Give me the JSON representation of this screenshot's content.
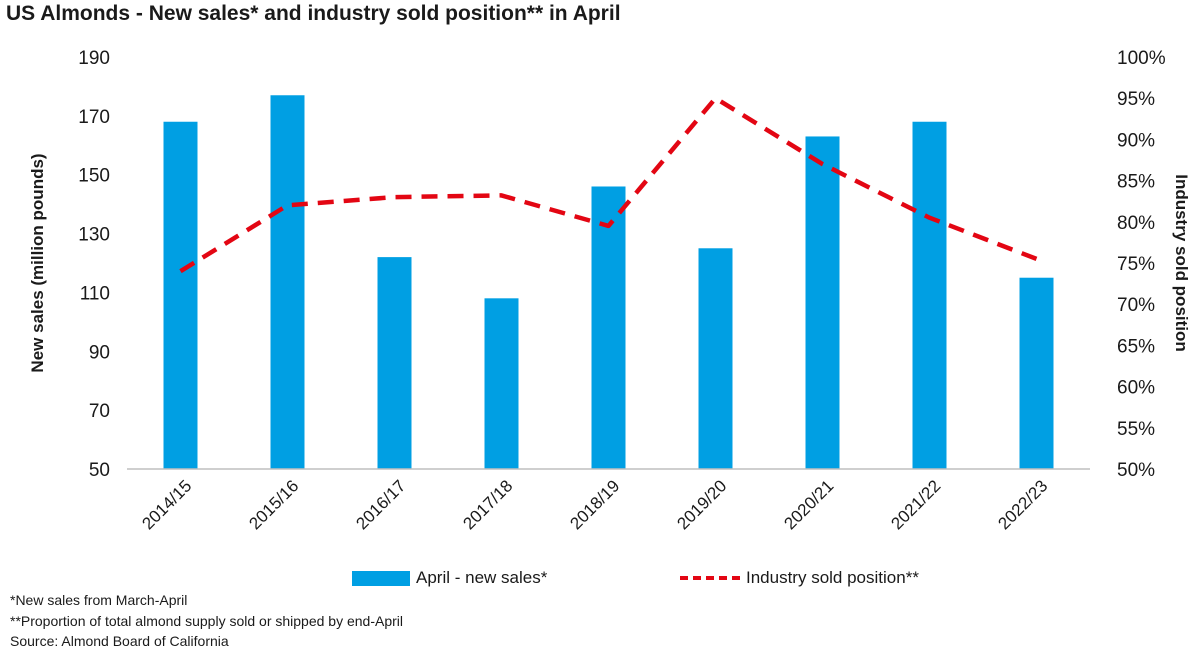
{
  "title": "US Almonds - New sales* and industry sold position** in April",
  "colors": {
    "bar": "#009fe3",
    "line": "#e30613",
    "axis": "#bfbfbf",
    "text": "#1a1a1a"
  },
  "legend": {
    "bar_label": "April - new sales*",
    "line_label": "Industry sold position**"
  },
  "footnotes": [
    "*New sales from March-April",
    "**Proportion of total almond supply sold or shipped by end-April",
    "Source: Almond Board of California"
  ],
  "chart_data": {
    "type": "bar",
    "categories": [
      "2014/15",
      "2015/16",
      "2016/17",
      "2017/18",
      "2018/19",
      "2019/20",
      "2020/21",
      "2021/22",
      "2022/23"
    ],
    "ylabel": "New sales (million pounds)",
    "y2label": "Industry sold position",
    "ylim": [
      50,
      190
    ],
    "y_ticks": [
      50,
      70,
      90,
      110,
      130,
      150,
      170,
      190
    ],
    "y2lim": [
      50,
      100
    ],
    "y2_ticks": [
      "50%",
      "55%",
      "60%",
      "65%",
      "70%",
      "75%",
      "80%",
      "85%",
      "90%",
      "95%",
      "100%"
    ],
    "series": [
      {
        "name": "April - new sales*",
        "type": "bar",
        "axis": "left",
        "values": [
          168,
          177,
          122,
          108,
          146,
          125,
          163,
          168,
          115
        ]
      },
      {
        "name": "Industry sold position**",
        "type": "line",
        "style": "dashed",
        "axis": "right",
        "values": [
          74,
          82,
          83,
          83.2,
          79.5,
          95,
          87,
          80.5,
          75.5
        ]
      }
    ],
    "grid": false,
    "legend_position": "bottom"
  }
}
